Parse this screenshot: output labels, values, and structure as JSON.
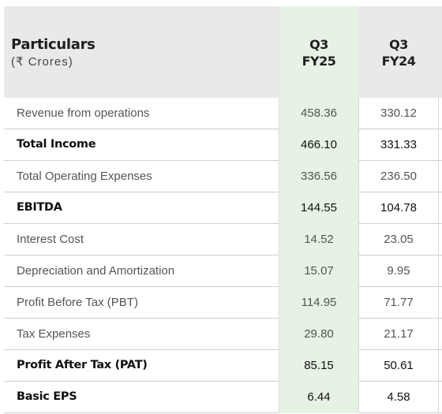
{
  "header": {
    "title": "Particulars",
    "subtitle": "(₹ Crores)",
    "col1": [
      "Q3",
      "FY25"
    ],
    "col2": [
      "Q3",
      "FY24"
    ]
  },
  "rows": [
    {
      "label": "Revenue from operations",
      "q3fy25": "458.36",
      "q3fy24": "330.12",
      "bold": false
    },
    {
      "label": "Total Income",
      "q3fy25": "466.10",
      "q3fy24": "331.33",
      "bold": true
    },
    {
      "label": "Total Operating Expenses",
      "q3fy25": "336.56",
      "q3fy24": "236.50",
      "bold": false
    },
    {
      "label": "EBITDA",
      "q3fy25": "144.55",
      "q3fy24": "104.78",
      "bold": true
    },
    {
      "label": "Interest Cost",
      "q3fy25": "14.52",
      "q3fy24": "23.05",
      "bold": false
    },
    {
      "label": "Depreciation and Amortization",
      "q3fy25": "15.07",
      "q3fy24": "9.95",
      "bold": false
    },
    {
      "label": "Profit Before Tax (PBT)",
      "q3fy25": "114.95",
      "q3fy24": "71.77",
      "bold": false
    },
    {
      "label": "Tax Expenses",
      "q3fy25": "29.80",
      "q3fy24": "21.17",
      "bold": false
    },
    {
      "label": "Profit After Tax (PAT)",
      "q3fy25": "85.15",
      "q3fy24": "50.61",
      "bold": true
    },
    {
      "label": "Basic EPS",
      "q3fy25": "6.44",
      "q3fy24": "4.58",
      "bold": true
    }
  ],
  "colors": {
    "header_bg": "#e9e9e9",
    "highlight_col": "#e6f2e4"
  }
}
